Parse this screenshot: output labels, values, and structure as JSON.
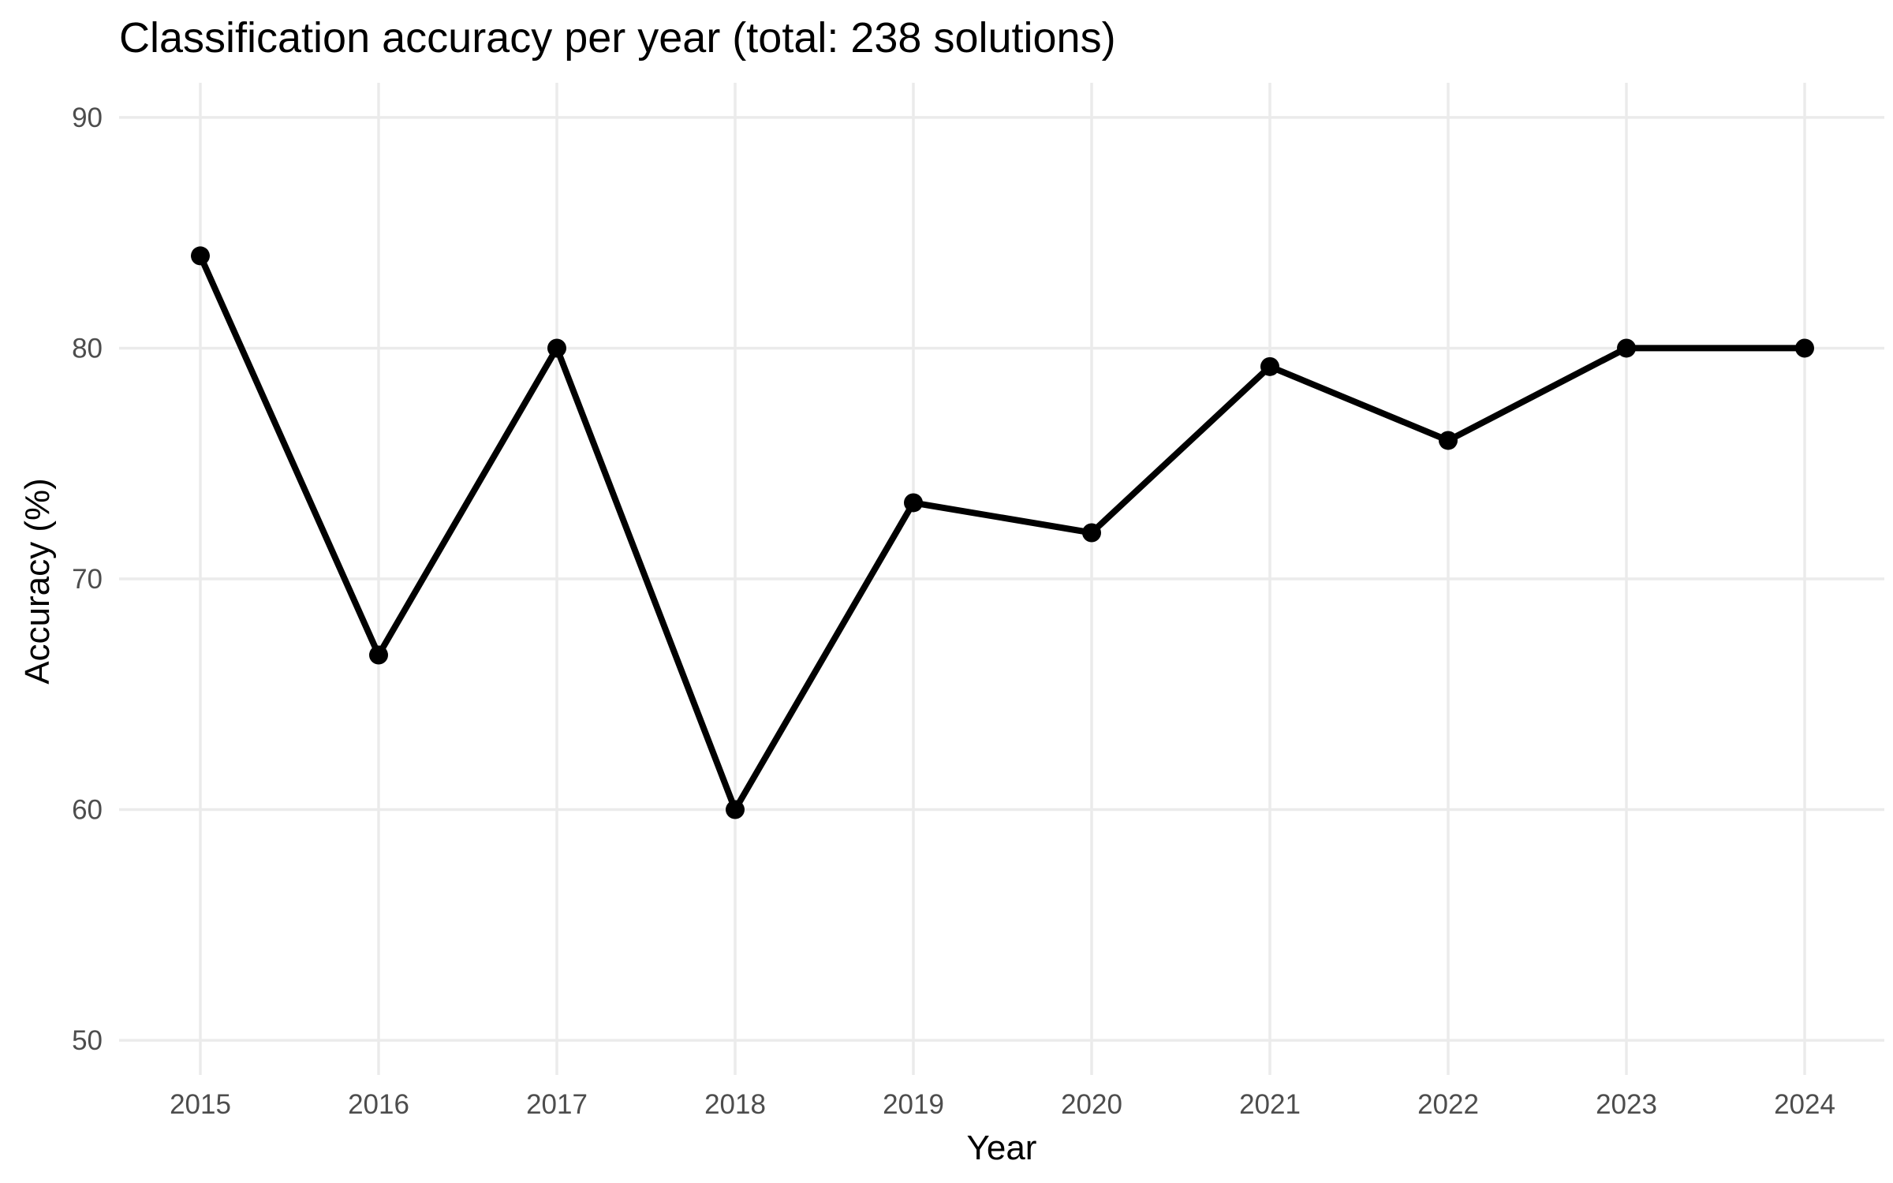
{
  "chart_data": {
    "type": "line",
    "title": "Classification accuracy per year (total: 238 solutions)",
    "xlabel": "Year",
    "ylabel": "Accuracy (%)",
    "x": [
      "2015",
      "2016",
      "2017",
      "2018",
      "2019",
      "2020",
      "2021",
      "2022",
      "2023",
      "2024"
    ],
    "series": [
      {
        "values": [
          84.0,
          66.7,
          80.0,
          60.0,
          73.3,
          72.0,
          79.2,
          76.0,
          80.0,
          80.0
        ]
      }
    ],
    "yticks": [
      50,
      60,
      70,
      80,
      90
    ],
    "ylim": [
      48.5,
      91.5
    ],
    "grid": true,
    "legend": "none",
    "colors": {
      "line": "#000000",
      "grid": "#ebebeb",
      "tick_text": "#4d4d4d",
      "background": "#ffffff"
    }
  }
}
